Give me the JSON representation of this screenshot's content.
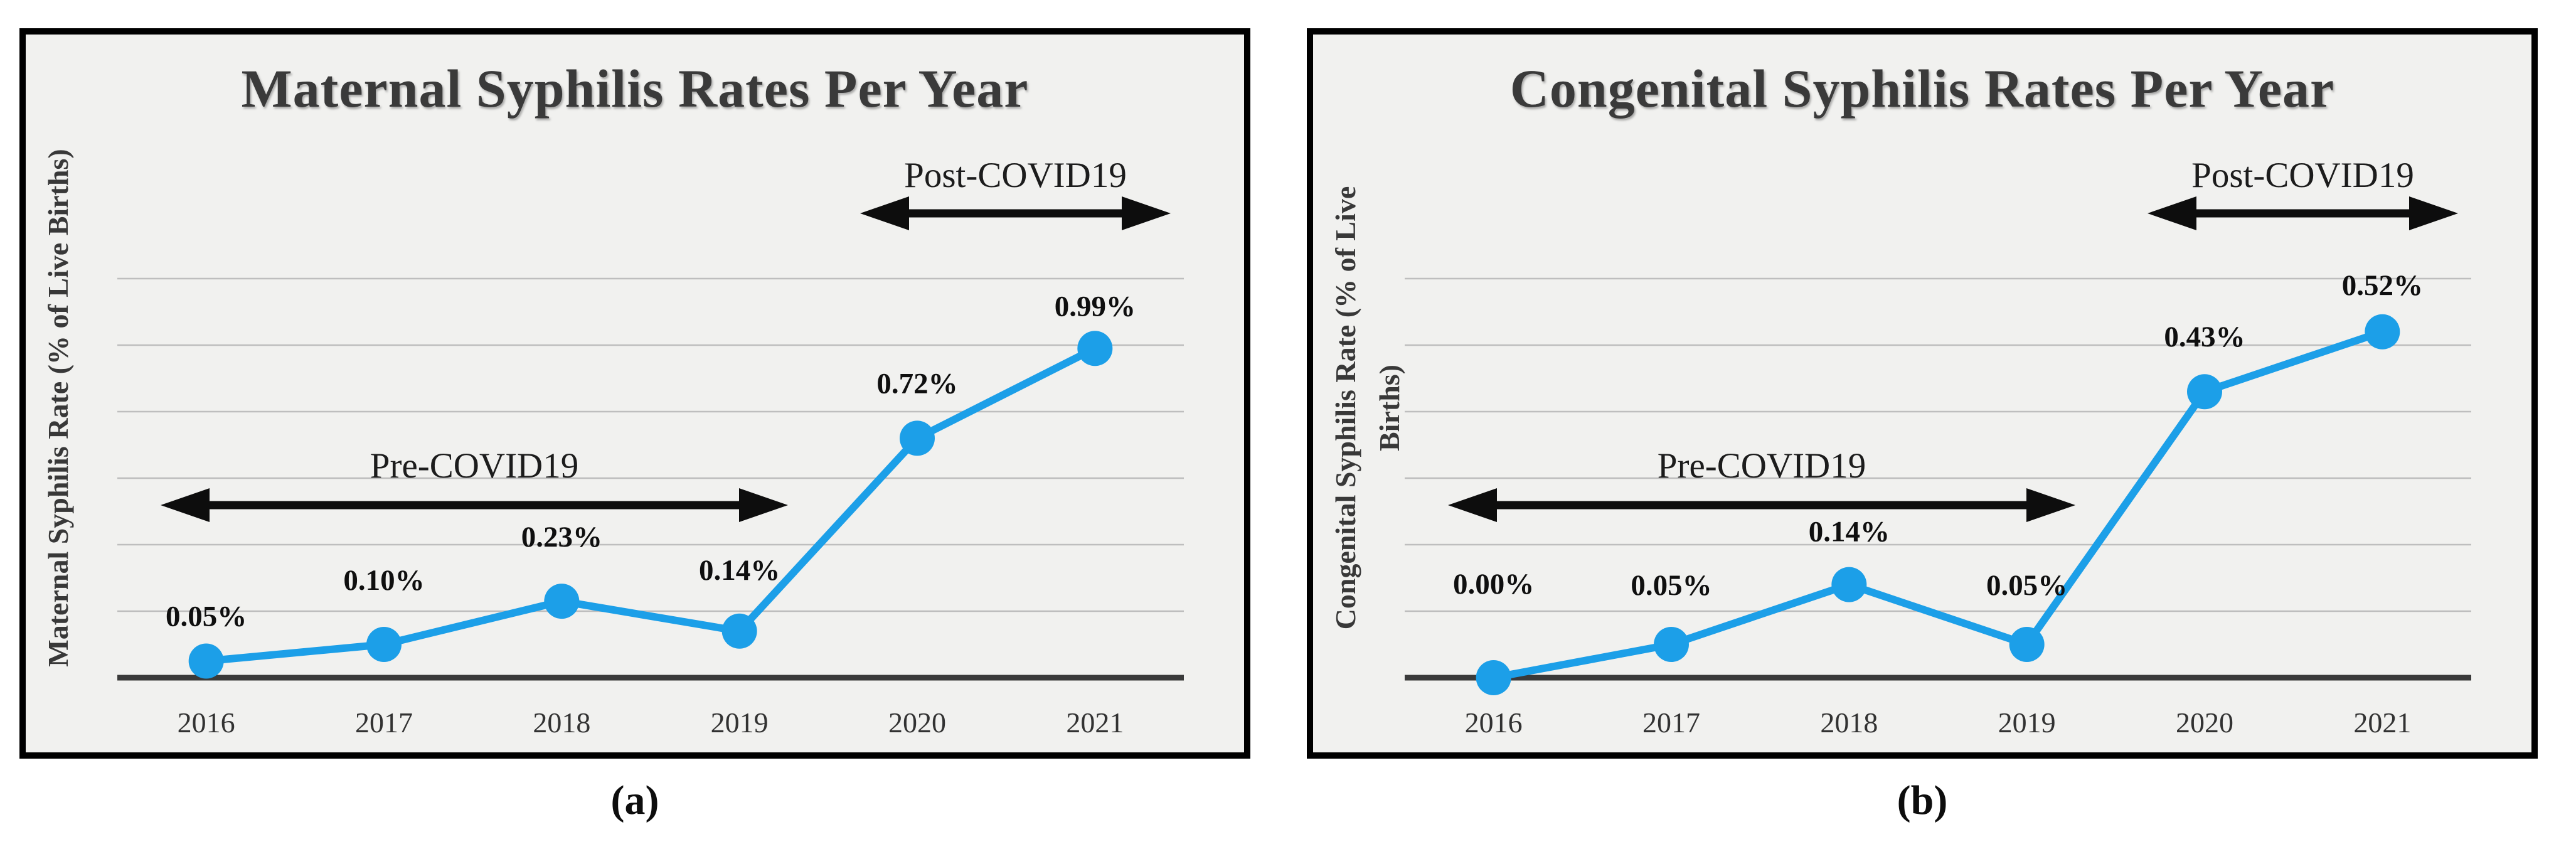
{
  "figure": {
    "captions": [
      {
        "label": "(a)"
      },
      {
        "label": "(b)"
      }
    ]
  },
  "chart_data": [
    {
      "type": "line",
      "panel": "a",
      "title": "Maternal Syphilis Rates Per Year",
      "ylabel": "Maternal Syphilis Rate (% of Live Births)",
      "ylabel_lines": [
        "Maternal Syphilis Rate (% of Live Births)"
      ],
      "xlabel": "",
      "categories": [
        "2016",
        "2017",
        "2018",
        "2019",
        "2020",
        "2021"
      ],
      "values": [
        0.05,
        0.1,
        0.23,
        0.14,
        0.72,
        0.99
      ],
      "point_labels": [
        "0.05%",
        "0.10%",
        "0.23%",
        "0.14%",
        "0.72%",
        "0.99%"
      ],
      "y_axis": {
        "min": 0,
        "max_visible_gridline": 1.2,
        "gridline_interval": 0.2,
        "tick_labels_visible": false,
        "unit": "% of live births"
      },
      "grid": true,
      "legend": "none",
      "line_color": "#1C9FE8",
      "annotations": [
        {
          "text": "Pre-COVID19",
          "type": "double-arrow",
          "covers": "2016 to 2019"
        },
        {
          "text": "Post-COVID19",
          "type": "double-arrow",
          "covers": "2020 to 2021"
        }
      ]
    },
    {
      "type": "line",
      "panel": "b",
      "title": "Congenital Syphilis Rates Per Year",
      "ylabel": "Congenital Syphilis Rate (% of Live Births)",
      "ylabel_lines": [
        "Congenital Syphilis Rate (% of Live",
        "Births)"
      ],
      "xlabel": "",
      "categories": [
        "2016",
        "2017",
        "2018",
        "2019",
        "2020",
        "2021"
      ],
      "values": [
        0.0,
        0.05,
        0.14,
        0.05,
        0.43,
        0.52
      ],
      "point_labels": [
        "0.00%",
        "0.05%",
        "0.14%",
        "0.05%",
        "0.43%",
        "0.52%"
      ],
      "y_axis": {
        "min": 0,
        "max_visible_gridline": 0.6,
        "gridline_interval": 0.1,
        "tick_labels_visible": false,
        "unit": "% of live births"
      },
      "grid": true,
      "legend": "none",
      "line_color": "#1C9FE8",
      "annotations": [
        {
          "text": "Pre-COVID19",
          "type": "double-arrow",
          "covers": "2016 to 2019"
        },
        {
          "text": "Post-COVID19",
          "type": "double-arrow",
          "covers": "2020 to 2021"
        }
      ]
    }
  ]
}
